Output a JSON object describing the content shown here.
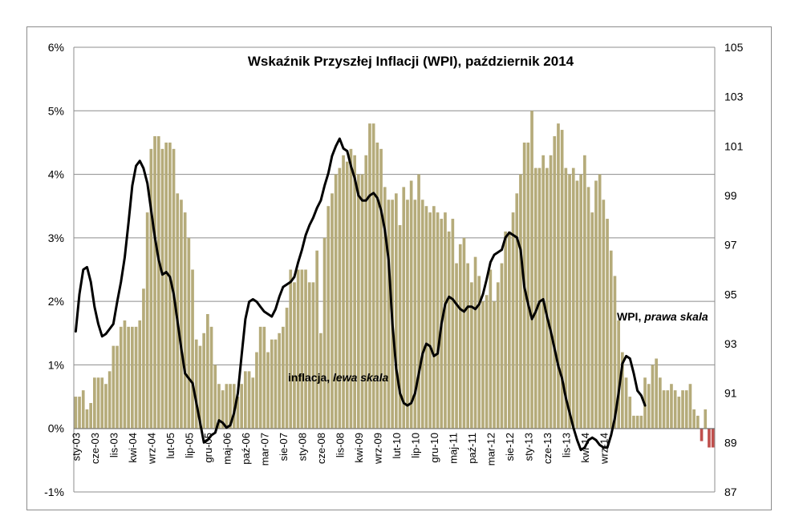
{
  "chart_data": {
    "type": "bar+line",
    "title": "Wskaźnik  Przyszłej Inflacji (WPI), październik 2014",
    "x_start": "2003-01",
    "x_labels": [
      "sty-03",
      "cze-03",
      "lis-03",
      "kwi-04",
      "wrz-04",
      "lut-05",
      "lip-05",
      "gru-05",
      "maj-06",
      "paź-06",
      "mar-07",
      "sie-07",
      "sty-08",
      "cze-08",
      "lis-08",
      "kwi-09",
      "wrz-09",
      "lut-10",
      "lip-10",
      "gru-10",
      "maj-11",
      "paź-11",
      "mar-12",
      "sie-12",
      "sty-13",
      "cze-13",
      "lis-13",
      "kwi-14",
      "wrz-14"
    ],
    "left_axis": {
      "min": -1,
      "max": 6,
      "step": 1,
      "ticks": [
        "-1%",
        "0%",
        "1%",
        "2%",
        "3%",
        "4%",
        "5%",
        "6%"
      ]
    },
    "right_axis": {
      "min": 87,
      "max": 105,
      "step": 2,
      "ticks": [
        "87",
        "89",
        "91",
        "93",
        "95",
        "97",
        "99",
        "101",
        "103",
        "105"
      ]
    },
    "gridlines": true,
    "series": [
      {
        "name": "inflacja",
        "label_prefix": "inflacja,",
        "label_italic": "lewa skala",
        "type": "bar",
        "axis": "left",
        "color": "#b5ab7a",
        "values": [
          0.5,
          0.5,
          0.6,
          0.3,
          0.4,
          0.8,
          0.8,
          0.8,
          0.7,
          0.9,
          1.3,
          1.3,
          1.6,
          1.7,
          1.6,
          1.6,
          1.6,
          1.7,
          2.2,
          3.4,
          4.4,
          4.6,
          4.6,
          4.4,
          4.5,
          4.5,
          4.4,
          3.7,
          3.6,
          3.4,
          3.0,
          2.5,
          1.4,
          1.3,
          1.5,
          1.8,
          1.6,
          1.0,
          0.7,
          0.6,
          0.7,
          0.7,
          0.7,
          0.5,
          0.7,
          0.9,
          0.9,
          0.8,
          1.2,
          1.6,
          1.6,
          1.2,
          1.4,
          1.4,
          1.5,
          1.6,
          1.9,
          2.5,
          2.3,
          2.5,
          2.5,
          2.5,
          2.3,
          2.3,
          2.8,
          1.5,
          3.0,
          3.5,
          3.7,
          4.0,
          4.1,
          4.3,
          4.2,
          4.4,
          4.3,
          4.0,
          4.0,
          4.3,
          4.8,
          4.8,
          4.5,
          4.4,
          3.8,
          3.6,
          3.6,
          3.7,
          3.2,
          3.8,
          3.6,
          3.9,
          3.6,
          4.0,
          3.6,
          3.5,
          3.4,
          3.5,
          3.4,
          3.3,
          3.4,
          3.1,
          3.3,
          2.6,
          2.9,
          3.0,
          2.6,
          2.3,
          2.7,
          2.4,
          2.0,
          2.1,
          2.5,
          2.0,
          2.3,
          2.6,
          3.1,
          3.1,
          3.4,
          3.7,
          4.0,
          4.5,
          4.5,
          5.0,
          4.1,
          4.1,
          4.3,
          4.1,
          4.3,
          4.6,
          4.8,
          4.7,
          4.1,
          4.0,
          4.1,
          3.9,
          4.0,
          4.3,
          3.8,
          3.4,
          3.9,
          4.0,
          3.6,
          3.3,
          2.8,
          2.4,
          1.7,
          1.2,
          0.8,
          0.5,
          0.2,
          0.2,
          0.2,
          0.8,
          0.7,
          1.0,
          1.1,
          0.8,
          0.6,
          0.6,
          0.7,
          0.6,
          0.5,
          0.6,
          0.6,
          0.7,
          0.3,
          0.2,
          -0.2,
          0.3,
          -0.3,
          -0.3
        ]
      },
      {
        "name": "WPI",
        "label_prefix": "WPI,",
        "label_italic": "prawa skala",
        "type": "line",
        "axis": "right",
        "color": "#000000",
        "values": [
          93.5,
          95.0,
          96.0,
          96.1,
          95.5,
          94.5,
          93.8,
          93.3,
          93.4,
          93.6,
          93.8,
          94.7,
          95.5,
          96.5,
          97.9,
          99.4,
          100.2,
          100.4,
          100.1,
          99.5,
          98.4,
          97.3,
          96.4,
          95.8,
          95.9,
          95.7,
          95.0,
          93.9,
          92.8,
          91.8,
          91.6,
          91.4,
          90.6,
          89.8,
          89.0,
          89.1,
          89.3,
          89.4,
          89.9,
          89.8,
          89.6,
          89.7,
          90.2,
          91.0,
          92.5,
          94.0,
          94.7,
          94.8,
          94.7,
          94.5,
          94.3,
          94.2,
          94.1,
          94.4,
          94.9,
          95.3,
          95.4,
          95.5,
          95.7,
          96.3,
          96.8,
          97.4,
          97.8,
          98.1,
          98.5,
          98.8,
          99.4,
          99.9,
          100.6,
          101.0,
          101.3,
          100.9,
          100.8,
          100.2,
          99.7,
          99.0,
          98.8,
          98.8,
          99.0,
          99.1,
          98.9,
          98.4,
          97.6,
          96.4,
          93.8,
          92.0,
          91.0,
          90.6,
          90.5,
          90.6,
          91.0,
          91.8,
          92.6,
          93.0,
          92.9,
          92.5,
          92.6,
          93.8,
          94.6,
          94.9,
          94.8,
          94.6,
          94.4,
          94.3,
          94.5,
          94.5,
          94.4,
          94.6,
          95.0,
          95.6,
          96.3,
          96.6,
          96.7,
          96.8,
          97.3,
          97.5,
          97.4,
          97.3,
          96.8,
          95.3,
          94.6,
          94.0,
          94.3,
          94.7,
          94.8,
          94.1,
          93.5,
          92.8,
          92.1,
          91.6,
          90.8,
          90.2,
          89.6,
          89.1,
          88.7,
          88.8,
          89.1,
          89.2,
          89.1,
          88.9,
          88.8,
          88.8,
          89.3,
          90.0,
          91.0,
          92.2,
          92.5,
          92.4,
          91.8,
          91.1,
          90.9,
          90.5
        ]
      }
    ]
  }
}
